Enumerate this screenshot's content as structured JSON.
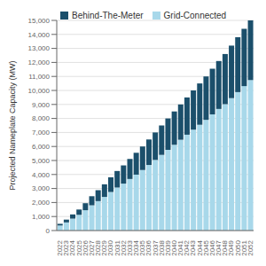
{
  "chart_data": {
    "type": "bar",
    "stacked": true,
    "ylabel": "Projected Nameplate Capacity (MW)",
    "categories": [
      "2022",
      "2023",
      "2024",
      "2025",
      "2026",
      "2027",
      "2028",
      "2029",
      "2030",
      "2031",
      "2032",
      "2033",
      "2034",
      "2035",
      "2036",
      "2037",
      "2038",
      "2039",
      "2040",
      "2041",
      "2042",
      "2043",
      "2044",
      "2045",
      "2046",
      "2047",
      "2048",
      "2049",
      "2050",
      "2051",
      "2052"
    ],
    "series": [
      {
        "name": "Grid-Connected",
        "color": "#a8d8ea",
        "values": [
          360,
          580,
          850,
          1120,
          1450,
          1800,
          2100,
          2400,
          2750,
          3070,
          3350,
          3680,
          3990,
          4320,
          4680,
          5040,
          5400,
          5760,
          6120,
          6480,
          6840,
          7200,
          7550,
          7900,
          8290,
          8680,
          9020,
          9450,
          9880,
          10310,
          10740
        ]
      },
      {
        "name": "Behind-The-Meter",
        "color": "#1b4f6b",
        "values": [
          120,
          200,
          300,
          380,
          500,
          650,
          780,
          900,
          1050,
          1180,
          1300,
          1430,
          1560,
          1680,
          1820,
          1960,
          2100,
          2240,
          2380,
          2520,
          2660,
          2800,
          2950,
          3100,
          3260,
          3420,
          3580,
          3750,
          3920,
          4090,
          4260
        ]
      }
    ],
    "ylim": [
      0,
      15000
    ],
    "yticks": [
      0,
      {
        "value": 1000,
        "label": "1,000"
      },
      {
        "value": 2000,
        "label": "2,000"
      },
      {
        "value": 3000,
        "label": "3,000"
      },
      {
        "value": 4000,
        "label": "4,000"
      },
      {
        "value": 5000,
        "label": "5,000"
      },
      {
        "value": 6000,
        "label": "6,000"
      },
      {
        "value": 7000,
        "label": "7,000"
      },
      {
        "value": 8000,
        "label": "8,000"
      },
      {
        "value": 9000,
        "label": "9,000"
      },
      {
        "value": 10000,
        "label": "10,000"
      },
      {
        "value": 11000,
        "label": "11,000"
      },
      {
        "value": 12000,
        "label": "12,000"
      },
      {
        "value": 13000,
        "label": "13,000"
      },
      {
        "value": 14000,
        "label": "14,000"
      },
      {
        "value": 15000,
        "label": "15,000"
      }
    ],
    "grid": true,
    "legend": "upper left"
  }
}
